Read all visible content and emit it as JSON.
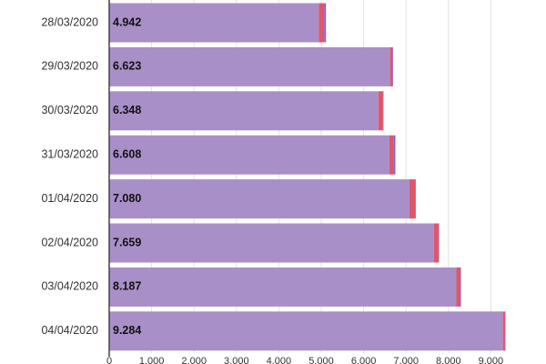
{
  "chart_data": {
    "type": "stacked-barh",
    "categories": [
      "28/03/2020",
      "29/03/2020",
      "30/03/2020",
      "31/03/2020",
      "01/04/2020",
      "02/04/2020",
      "03/04/2020",
      "04/04/2020"
    ],
    "series": [
      {
        "color": "#a98fc8",
        "values": [
          4942,
          6623,
          6348,
          6608,
          7080,
          7659,
          8187,
          9284
        ],
        "value_labels": [
          "4.942",
          "6.623",
          "6.348",
          "6.608",
          "7.080",
          "7.659",
          "8.187",
          "9.284"
        ]
      },
      {
        "color": "#e0566a",
        "values": [
          130,
          60,
          110,
          100,
          140,
          110,
          100,
          50
        ]
      },
      {
        "color": "#7b66d6",
        "values": [
          40,
          10,
          10,
          40,
          10,
          10,
          10,
          10
        ]
      }
    ],
    "xlim": [
      0,
      10000
    ],
    "xticks": [
      0,
      {
        "value": 1000,
        "label": "1.000"
      },
      {
        "value": 2000,
        "label": "2.000"
      },
      {
        "value": 3000,
        "label": "3.000"
      },
      {
        "value": 4000,
        "label": "4.000"
      },
      {
        "value": 5000,
        "label": "5.000"
      },
      {
        "value": 6000,
        "label": "6.000"
      },
      {
        "value": 7000,
        "label": "7.000"
      },
      {
        "value": 8000,
        "label": "8.000"
      },
      {
        "value": 9000,
        "label": "9.000"
      }
    ],
    "grid": true
  }
}
